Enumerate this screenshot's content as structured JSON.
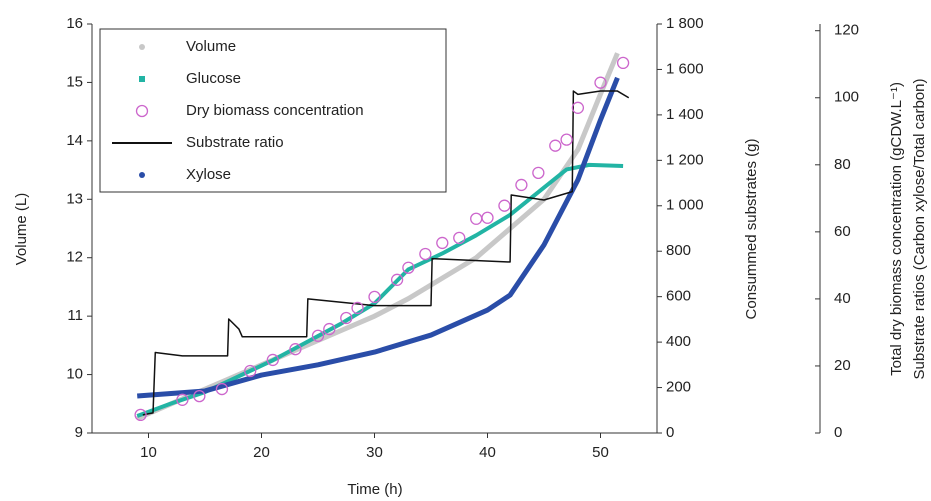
{
  "chart_data": {
    "type": "line",
    "xlabel": "Time (h)",
    "ylabel": "Volume (L)",
    "y2label": "Consummed substrates (g)",
    "y3label": [
      "Total dry biomass concentration (gCDW.L⁻¹)",
      "Substrate ratios (Carbon xylose/Total carbon)"
    ],
    "xlim": [
      5,
      55
    ],
    "xticks": [
      10,
      20,
      30,
      40,
      50
    ],
    "ylim": [
      9,
      16
    ],
    "yticks": [
      9,
      10,
      11,
      12,
      13,
      14,
      15,
      16
    ],
    "y2lim": [
      0,
      1800
    ],
    "y2ticks": [
      0,
      200,
      400,
      600,
      800,
      {
        "value": 1000,
        "label": "1 000"
      },
      {
        "value": 1200,
        "label": "1 200"
      },
      {
        "value": 1400,
        "label": "1 400"
      },
      {
        "value": 1600,
        "label": "1 600"
      },
      {
        "value": 1800,
        "label": "1 800"
      }
    ],
    "y3lim": [
      0,
      122
    ],
    "y3ticks": [
      0,
      20,
      40,
      60,
      80,
      100,
      120
    ],
    "legend": "upper left",
    "series": [
      {
        "name": "Volume",
        "color": "#c8c8c8",
        "axis": "y",
        "marker": "line",
        "x": [
          9,
          12,
          15,
          18,
          21,
          24,
          27,
          30,
          33,
          36,
          39,
          42,
          45,
          48,
          50,
          51.5
        ],
        "values": [
          9.25,
          9.5,
          9.75,
          10.0,
          10.25,
          10.5,
          10.75,
          11.0,
          11.3,
          11.65,
          12.0,
          12.5,
          13.0,
          13.85,
          14.8,
          15.5
        ]
      },
      {
        "name": "Glucose",
        "color": "#22b4a4",
        "axis": "y2",
        "marker": "line",
        "x": [
          9,
          12,
          15,
          18,
          21,
          24,
          27,
          30,
          33,
          36,
          39,
          42,
          45,
          47,
          49,
          52
        ],
        "values": [
          75,
          130,
          180,
          250,
          320,
          400,
          480,
          570,
          720,
          790,
          870,
          960,
          1080,
          1160,
          1180,
          1175
        ]
      },
      {
        "name": "Dry biomass concentration",
        "color": "#cc66cc",
        "axis": "y3",
        "marker": "circle",
        "x": [
          9.3,
          13,
          14.5,
          16.5,
          19,
          21,
          23,
          25,
          26,
          27.5,
          28.5,
          30,
          32,
          33,
          34.5,
          36,
          37.5,
          39,
          40,
          41.5,
          43,
          44.5,
          46,
          47,
          48,
          50,
          52
        ],
        "values": [
          5.4,
          9.9,
          11,
          13.1,
          18.5,
          21.8,
          25,
          29,
          31,
          34.3,
          37.3,
          40.6,
          45.7,
          49.3,
          53.4,
          56.7,
          58.2,
          63.9,
          64.2,
          67.8,
          74,
          77.6,
          85.7,
          87.5,
          97,
          104.5,
          110.4
        ]
      },
      {
        "name": "Substrate ratio",
        "color": "#111111",
        "axis": "y3",
        "marker": "line",
        "x": [
          9.5,
          10.4,
          10.6,
          13,
          17,
          17.1,
          18,
          18.3,
          24,
          24.1,
          30,
          35,
          35.1,
          42,
          42.1,
          45,
          47.5,
          47.6,
          48,
          50,
          51.5,
          52.5
        ],
        "values": [
          5.4,
          6,
          24,
          23,
          23,
          34,
          31,
          28.7,
          28.7,
          40,
          38,
          38,
          52,
          51,
          71,
          69.5,
          72,
          102,
          101,
          102,
          102,
          100
        ]
      },
      {
        "name": "Xylose",
        "color": "#2a4da8",
        "axis": "y2",
        "marker": "line",
        "x": [
          9,
          15,
          20,
          25,
          30,
          35,
          40,
          42,
          45,
          48,
          50,
          51.5
        ],
        "values": [
          163,
          185,
          255,
          300,
          356,
          431,
          541,
          607,
          828,
          1114,
          1378,
          1563
        ]
      }
    ]
  }
}
